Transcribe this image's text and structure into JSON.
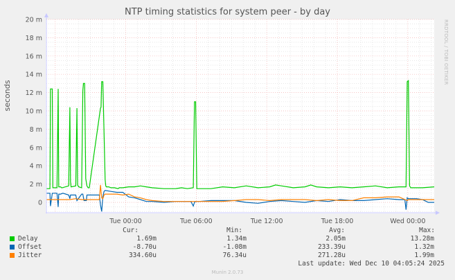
{
  "title": "NTP timing statistics for system peer - by day",
  "watermark": "RRDTOOL / TOBI OETIKER",
  "footer": "Munin 2.0.73",
  "last_update": "Last update: Wed Dec 10 04:05:24 2025",
  "legend": {
    "headers": {
      "cur": "Cur:",
      "min": "Min:",
      "avg": "Avg:",
      "max": "Max:"
    },
    "rows": [
      {
        "name": "Delay",
        "color": "#00cc00",
        "cur": "1.69m",
        "min": "1.34m",
        "avg": "2.05m",
        "max": "13.28m"
      },
      {
        "name": "Offset",
        "color": "#0066b3",
        "cur": "-8.70u",
        "min": "-1.08m",
        "avg": "233.39u",
        "max": "1.32m"
      },
      {
        "name": "Jitter",
        "color": "#ff8000",
        "cur": "334.60u",
        "min": "76.34u",
        "avg": "271.28u",
        "max": "1.99m"
      }
    ]
  },
  "chart_data": {
    "type": "line",
    "title": "NTP timing statistics for system peer - by day",
    "xlabel": "",
    "ylabel": "seconds",
    "ylim": [
      -1,
      20
    ],
    "y_unit": "m (milliseconds)",
    "yticks": [
      "0",
      "2 m",
      "4 m",
      "6 m",
      "8 m",
      "10 m",
      "12 m",
      "14 m",
      "16 m",
      "18 m",
      "20 m"
    ],
    "xticks": [
      "Tue 00:00",
      "Tue 06:00",
      "Tue 12:00",
      "Tue 18:00",
      "Wed 00:00"
    ],
    "grid": true,
    "legend_position": "bottom",
    "x_hours_from_start": "0 = Mon ~17:15, 33.0 = Wed ~02:15",
    "series": [
      {
        "name": "Delay",
        "color": "#00cc00",
        "x": [
          0,
          0.3,
          0.35,
          0.5,
          0.55,
          0.9,
          1.0,
          1.05,
          1.2,
          1.3,
          1.35,
          1.9,
          2.0,
          2.05,
          2.1,
          2.5,
          2.6,
          2.65,
          2.75,
          3.0,
          3.1,
          3.15,
          3.25,
          3.35,
          3.45,
          3.5,
          3.55,
          3.65,
          4.6,
          4.65,
          4.7,
          4.8,
          5.0,
          5.05,
          5.1,
          5.3,
          5.5,
          5.8,
          6.1,
          6.2,
          6.5,
          7.0,
          7.5,
          8.0,
          8.5,
          9.0,
          10.0,
          11.0,
          11.5,
          12.0,
          12.5,
          12.6,
          12.7,
          12.8,
          13.0,
          14.0,
          15.0,
          16.0,
          17.0,
          18.0,
          19.0,
          19.5,
          20.0,
          21.0,
          22.0,
          22.5,
          23.0,
          24.0,
          25.0,
          26.0,
          27.0,
          28.0,
          29.0,
          30.0,
          30.6,
          30.7,
          30.8,
          30.9,
          31.0,
          31.5,
          32.0,
          33.0
        ],
        "values": [
          1.5,
          1.5,
          12.4,
          12.4,
          1.6,
          1.6,
          12.4,
          1.7,
          1.7,
          1.6,
          1.6,
          1.8,
          10.4,
          2.3,
          1.7,
          1.8,
          10.3,
          1.9,
          1.7,
          1.6,
          12.2,
          13.0,
          13.0,
          2.6,
          1.8,
          1.7,
          1.6,
          1.6,
          10.3,
          10.4,
          13.2,
          13.2,
          2.5,
          1.8,
          1.7,
          1.7,
          1.6,
          1.6,
          1.5,
          1.6,
          1.6,
          1.7,
          1.7,
          1.8,
          1.7,
          1.6,
          1.5,
          1.5,
          1.6,
          1.5,
          1.6,
          11.0,
          11.0,
          1.5,
          1.5,
          1.5,
          1.7,
          1.6,
          1.8,
          1.6,
          1.7,
          1.9,
          1.8,
          1.6,
          1.7,
          1.9,
          1.7,
          1.6,
          1.7,
          1.6,
          1.7,
          1.8,
          1.6,
          1.7,
          1.7,
          13.2,
          13.3,
          1.8,
          1.6,
          1.6,
          1.6,
          1.7
        ]
      },
      {
        "name": "Offset",
        "color": "#0066b3",
        "x": [
          0,
          0.3,
          0.35,
          0.5,
          0.55,
          0.9,
          1.0,
          1.05,
          1.2,
          1.4,
          1.9,
          2.0,
          2.05,
          2.5,
          2.6,
          3.0,
          3.1,
          3.2,
          3.4,
          3.45,
          3.6,
          4.5,
          4.6,
          4.7,
          4.8,
          4.9,
          5.0,
          5.5,
          6.0,
          6.5,
          7.0,
          7.5,
          8.0,
          8.5,
          9.0,
          10.0,
          11.0,
          12.0,
          12.3,
          12.5,
          12.6,
          12.7,
          13.0,
          14.0,
          15.0,
          16.0,
          17.0,
          18.0,
          19.0,
          20.0,
          21.0,
          22.0,
          23.0,
          24.0,
          25.0,
          26.0,
          27.0,
          28.0,
          29.0,
          30.0,
          30.5,
          30.6,
          30.7,
          30.8,
          31.0,
          31.5,
          32.0,
          32.5,
          33.0
        ],
        "values": [
          1.0,
          1.0,
          -0.4,
          1.0,
          1.0,
          1.0,
          -0.5,
          0.9,
          0.9,
          1.0,
          0.8,
          0.4,
          0.8,
          0.8,
          0.2,
          0.9,
          0.9,
          0.2,
          0.2,
          0.8,
          0.8,
          0.8,
          -0.3,
          -1.0,
          0.6,
          1.2,
          1.3,
          1.2,
          1.1,
          1.1,
          0.6,
          0.5,
          0.3,
          0.1,
          0.1,
          0.0,
          0.1,
          0.1,
          0.1,
          -0.4,
          0.0,
          0.1,
          0.1,
          0.2,
          0.2,
          0.2,
          0.0,
          -0.1,
          0.1,
          0.2,
          0.1,
          0.0,
          0.2,
          0.1,
          0.3,
          0.2,
          0.2,
          0.3,
          0.4,
          0.3,
          0.3,
          -0.8,
          0.5,
          0.4,
          0.4,
          0.4,
          0.3,
          0.0,
          0.0
        ]
      },
      {
        "name": "Jitter",
        "color": "#ff8000",
        "x": [
          0,
          0.5,
          1.0,
          1.5,
          2.0,
          2.5,
          3.0,
          3.5,
          4.0,
          4.5,
          4.6,
          4.7,
          4.8,
          4.9,
          5.0,
          5.5,
          6.0,
          6.5,
          7.0,
          7.5,
          8.0,
          8.5,
          9.0,
          10.0,
          11.0,
          12.0,
          13.0,
          14.0,
          15.0,
          16.0,
          17.0,
          18.0,
          19.0,
          20.0,
          21.0,
          22.0,
          23.0,
          24.0,
          25.0,
          26.0,
          27.0,
          28.0,
          29.0,
          30.0,
          30.7,
          30.8,
          31.0,
          32.0,
          33.0
        ],
        "values": [
          0.3,
          0.3,
          0.3,
          0.3,
          0.3,
          0.4,
          0.3,
          0.3,
          0.3,
          0.3,
          1.9,
          0.5,
          0.4,
          0.8,
          0.9,
          0.9,
          0.9,
          0.8,
          0.9,
          0.6,
          0.5,
          0.3,
          0.2,
          0.1,
          0.1,
          0.1,
          0.1,
          0.1,
          0.1,
          0.2,
          0.3,
          0.3,
          0.2,
          0.3,
          0.3,
          0.3,
          0.2,
          0.3,
          0.2,
          0.2,
          0.5,
          0.5,
          0.6,
          0.6,
          0.2,
          0.3,
          0.3,
          0.3,
          0.3
        ]
      }
    ]
  }
}
